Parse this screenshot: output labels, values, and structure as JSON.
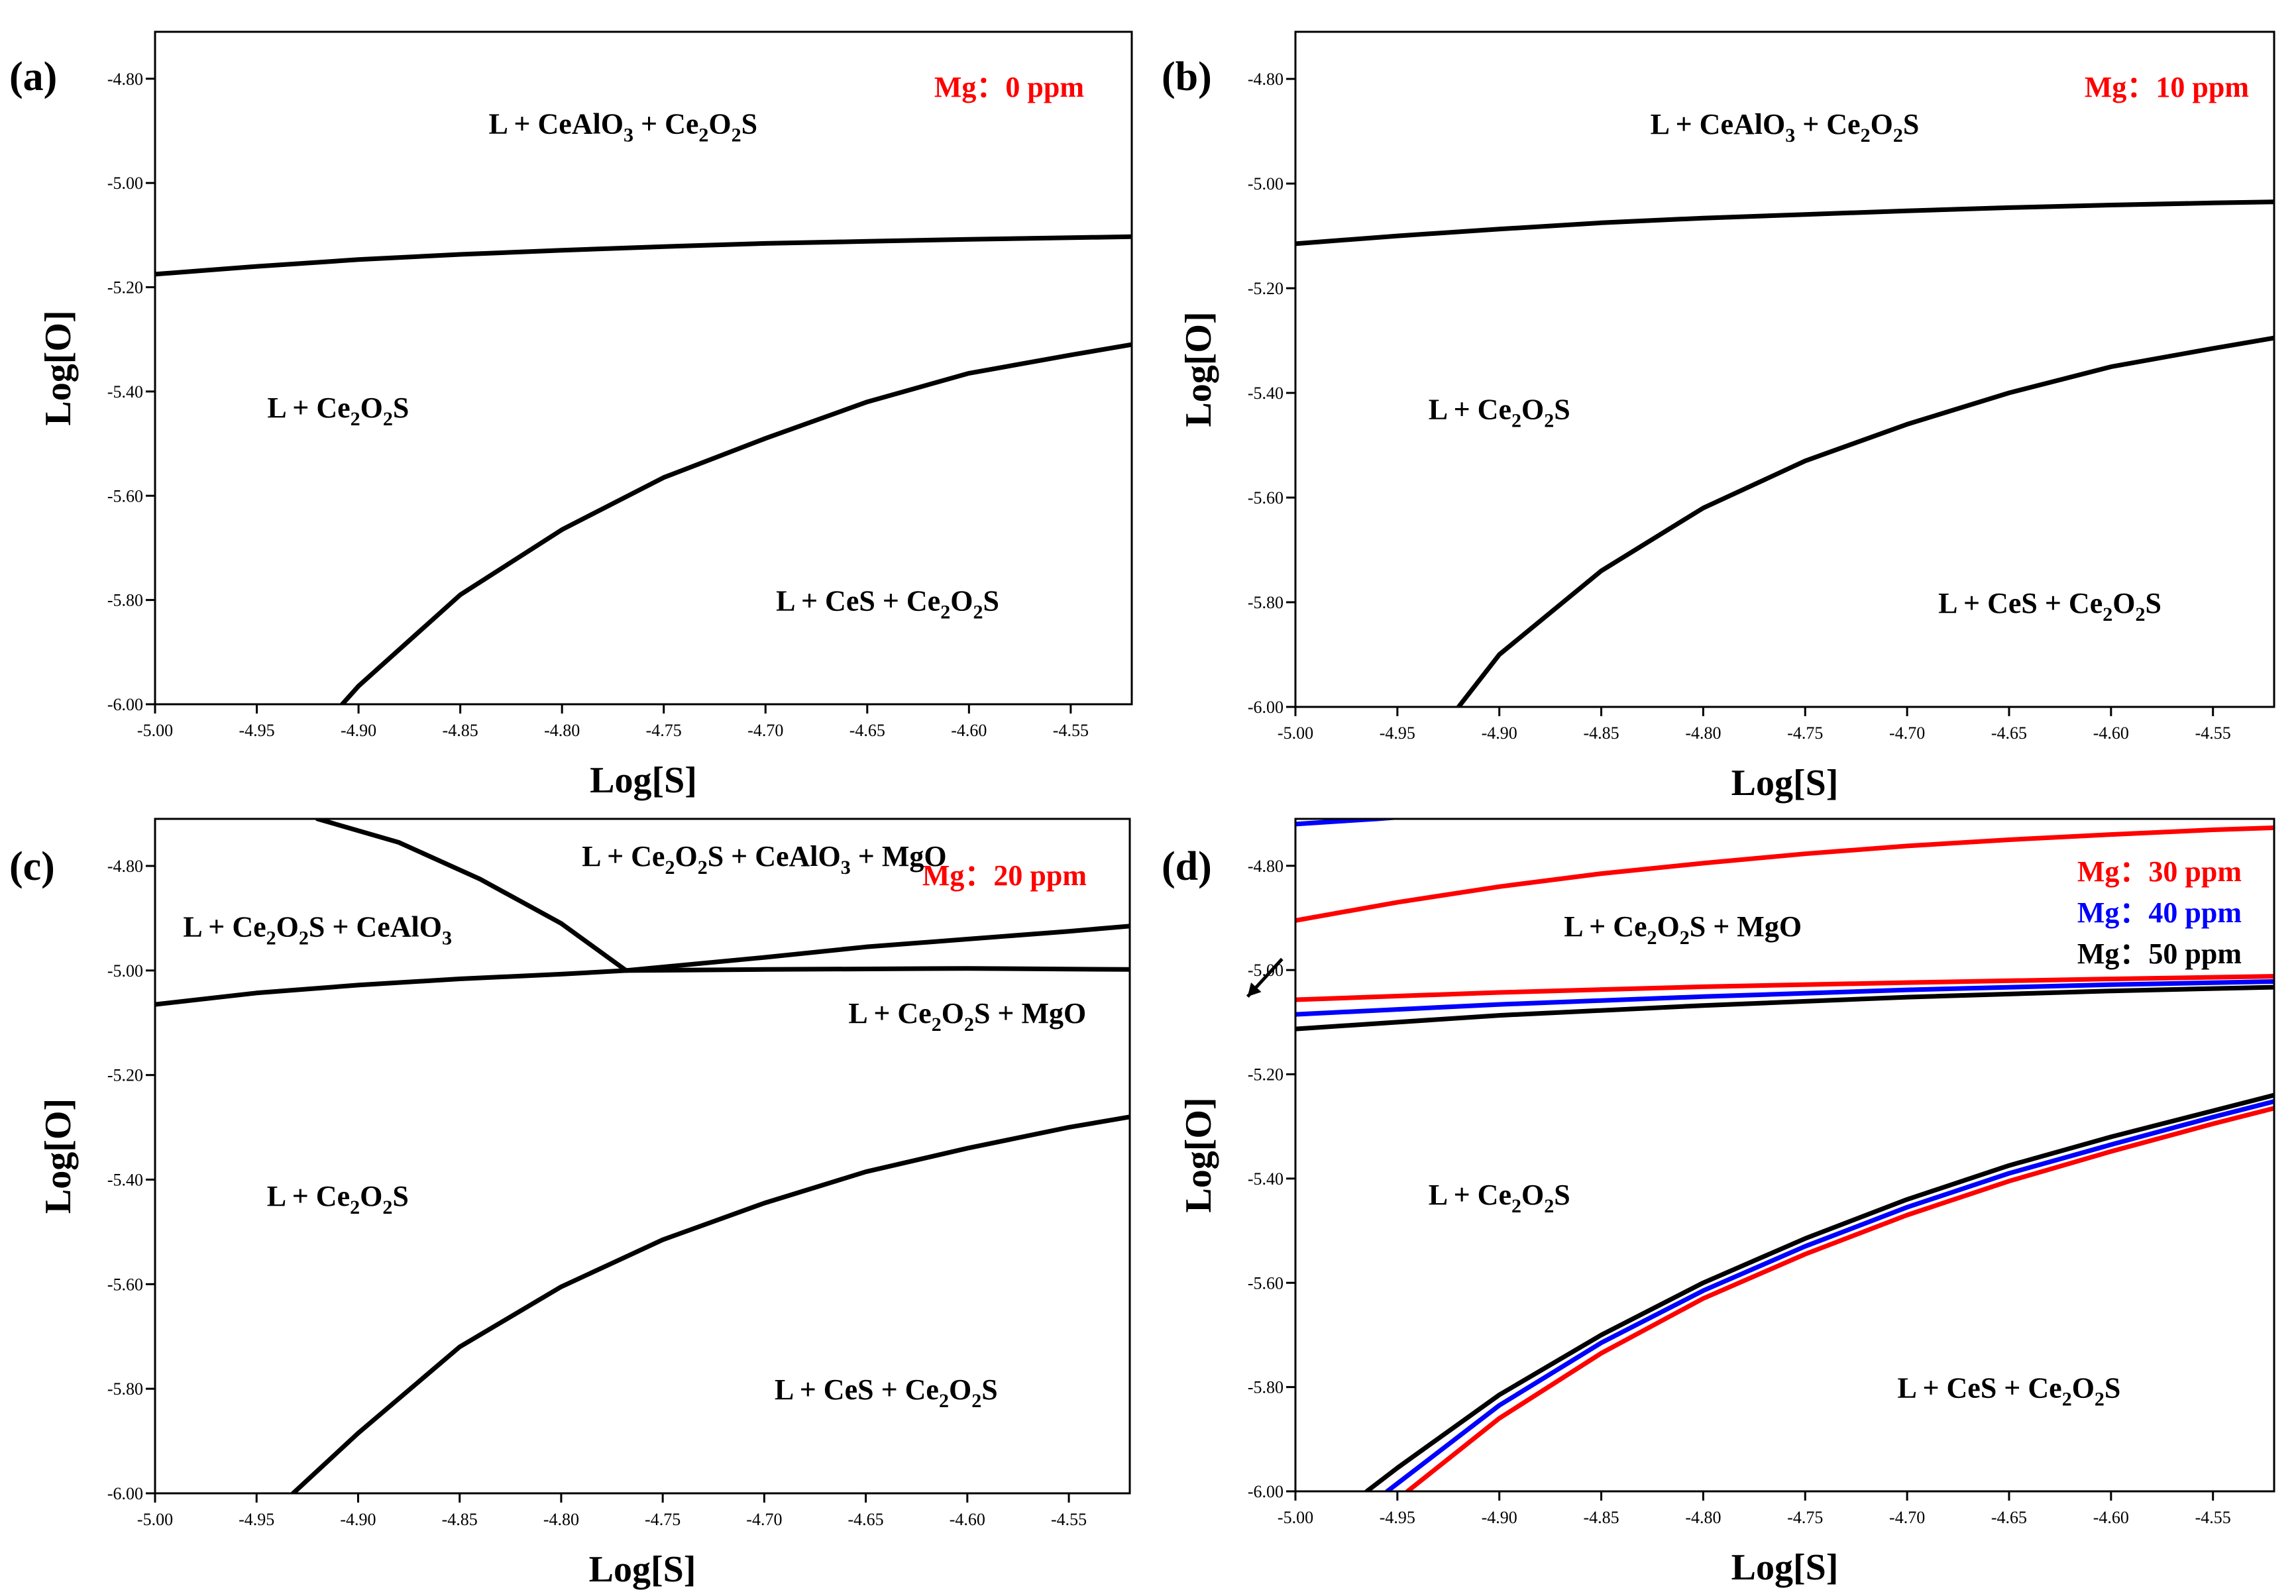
{
  "chart_data": [
    {
      "panel_label": "(a)",
      "type": "line",
      "xlabel": "Log[S]",
      "ylabel": "Log[O]",
      "xlim": [
        -5.0,
        -4.52
      ],
      "ylim": [
        -6.0,
        -4.71
      ],
      "xticks": [
        "-5.00",
        "-4.95",
        "-4.90",
        "-4.85",
        "-4.80",
        "-4.75",
        "-4.70",
        "-4.65",
        "-4.60",
        "-4.55"
      ],
      "yticks": [
        "-4.80",
        "-5.00",
        "-5.20",
        "-5.40",
        "-5.60",
        "-5.80",
        "-6.00"
      ],
      "mg_labels": [
        {
          "text": "Mg：0 ppm",
          "color": "#ff0000"
        }
      ],
      "regions": [
        {
          "parts": [
            [
              "L + CeAlO",
              ""
            ],
            [
              "3",
              "sub"
            ],
            [
              " + Ce",
              ""
            ],
            [
              "2",
              "sub"
            ],
            [
              "O",
              ""
            ],
            [
              "2",
              "sub"
            ],
            [
              "S",
              ""
            ]
          ],
          "at": [
            -4.77,
            -4.905
          ]
        },
        {
          "parts": [
            [
              "L + Ce",
              ""
            ],
            [
              "2",
              "sub"
            ],
            [
              "O",
              ""
            ],
            [
              "2",
              "sub"
            ],
            [
              "S",
              ""
            ]
          ],
          "at": [
            -4.91,
            -5.45
          ]
        },
        {
          "parts": [
            [
              "L + CeS + Ce",
              ""
            ],
            [
              "2",
              "sub"
            ],
            [
              "O",
              ""
            ],
            [
              "2",
              "sub"
            ],
            [
              "S",
              ""
            ]
          ],
          "at": [
            -4.64,
            -5.82
          ]
        }
      ],
      "series": [
        {
          "name": "upper boundary",
          "color": "#000000",
          "x": [
            -5.0,
            -4.95,
            -4.9,
            -4.85,
            -4.8,
            -4.75,
            -4.7,
            -4.65,
            -4.6,
            -4.55,
            -4.52
          ],
          "y": [
            -5.175,
            -5.16,
            -5.147,
            -5.137,
            -5.129,
            -5.122,
            -5.116,
            -5.112,
            -5.108,
            -5.105,
            -5.103
          ]
        },
        {
          "name": "lower boundary",
          "color": "#000000",
          "x": [
            -4.908,
            -4.9,
            -4.85,
            -4.8,
            -4.75,
            -4.7,
            -4.65,
            -4.6,
            -4.55,
            -4.52
          ],
          "y": [
            -6.0,
            -5.965,
            -5.79,
            -5.665,
            -5.565,
            -5.49,
            -5.42,
            -5.365,
            -5.33,
            -5.31
          ]
        }
      ]
    },
    {
      "panel_label": "(b)",
      "type": "line",
      "xlabel": "Log[S]",
      "ylabel": "Log[O]",
      "xlim": [
        -5.0,
        -4.52
      ],
      "ylim": [
        -6.0,
        -4.71
      ],
      "xticks": [
        "-5.00",
        "-4.95",
        "-4.90",
        "-4.85",
        "-4.80",
        "-4.75",
        "-4.70",
        "-4.65",
        "-4.60",
        "-4.55"
      ],
      "yticks": [
        "-4.80",
        "-5.00",
        "-5.20",
        "-5.40",
        "-5.60",
        "-5.80",
        "-6.00"
      ],
      "mg_labels": [
        {
          "text": "Mg：10 ppm",
          "color": "#ff0000"
        }
      ],
      "regions": [
        {
          "parts": [
            [
              "L + CeAlO",
              ""
            ],
            [
              "3",
              "sub"
            ],
            [
              " + Ce",
              ""
            ],
            [
              "2",
              "sub"
            ],
            [
              "O",
              ""
            ],
            [
              "2",
              "sub"
            ],
            [
              "S",
              ""
            ]
          ],
          "at": [
            -4.76,
            -4.905
          ]
        },
        {
          "parts": [
            [
              "L + Ce",
              ""
            ],
            [
              "2",
              "sub"
            ],
            [
              "O",
              ""
            ],
            [
              "2",
              "sub"
            ],
            [
              "S",
              ""
            ]
          ],
          "at": [
            -4.9,
            -5.45
          ]
        },
        {
          "parts": [
            [
              "L + CeS + Ce",
              ""
            ],
            [
              "2",
              "sub"
            ],
            [
              "O",
              ""
            ],
            [
              "2",
              "sub"
            ],
            [
              "S",
              ""
            ]
          ],
          "at": [
            -4.63,
            -5.82
          ]
        }
      ],
      "series": [
        {
          "name": "upper boundary",
          "color": "#000000",
          "x": [
            -5.0,
            -4.95,
            -4.9,
            -4.85,
            -4.8,
            -4.75,
            -4.7,
            -4.65,
            -4.6,
            -4.55,
            -4.52
          ],
          "y": [
            -5.115,
            -5.1,
            -5.087,
            -5.075,
            -5.066,
            -5.059,
            -5.052,
            -5.046,
            -5.041,
            -5.037,
            -5.035
          ]
        },
        {
          "name": "lower boundary",
          "color": "#000000",
          "x": [
            -4.92,
            -4.9,
            -4.85,
            -4.8,
            -4.75,
            -4.7,
            -4.65,
            -4.6,
            -4.55,
            -4.52
          ],
          "y": [
            -6.0,
            -5.9,
            -5.74,
            -5.62,
            -5.53,
            -5.46,
            -5.4,
            -5.35,
            -5.315,
            -5.295
          ]
        }
      ]
    },
    {
      "panel_label": "(c)",
      "type": "line",
      "xlabel": "Log[S]",
      "ylabel": "Log[O]",
      "xlim": [
        -5.0,
        -4.52
      ],
      "ylim": [
        -6.0,
        -4.71
      ],
      "xticks": [
        "-5.00",
        "-4.95",
        "-4.90",
        "-4.85",
        "-4.80",
        "-4.75",
        "-4.70",
        "-4.65",
        "-4.60",
        "-4.55"
      ],
      "yticks": [
        "-4.80",
        "-5.00",
        "-5.20",
        "-5.40",
        "-5.60",
        "-5.80",
        "-6.00"
      ],
      "mg_labels": [
        {
          "text": "Mg：20 ppm",
          "color": "#ff0000"
        }
      ],
      "regions": [
        {
          "parts": [
            [
              "L + Ce",
              ""
            ],
            [
              "2",
              "sub"
            ],
            [
              "O",
              ""
            ],
            [
              "2",
              "sub"
            ],
            [
              "S + CeAlO",
              ""
            ],
            [
              "3",
              "sub"
            ],
            [
              " + MgO",
              ""
            ]
          ],
          "at": [
            -4.7,
            -4.8
          ]
        },
        {
          "parts": [
            [
              "L + Ce",
              ""
            ],
            [
              "2",
              "sub"
            ],
            [
              "O",
              ""
            ],
            [
              "2",
              "sub"
            ],
            [
              "S + CeAlO",
              ""
            ],
            [
              "3",
              "sub"
            ]
          ],
          "at": [
            -4.92,
            -4.935
          ]
        },
        {
          "parts": [
            [
              "L + Ce",
              ""
            ],
            [
              "2",
              "sub"
            ],
            [
              "O",
              ""
            ],
            [
              "2",
              "sub"
            ],
            [
              "S + MgO",
              ""
            ]
          ],
          "at": [
            -4.6,
            -5.1
          ]
        },
        {
          "parts": [
            [
              "L + Ce",
              ""
            ],
            [
              "2",
              "sub"
            ],
            [
              "O",
              ""
            ],
            [
              "2",
              "sub"
            ],
            [
              "S",
              ""
            ]
          ],
          "at": [
            -4.91,
            -5.45
          ]
        },
        {
          "parts": [
            [
              "L + CeS + Ce",
              ""
            ],
            [
              "2",
              "sub"
            ],
            [
              "O",
              ""
            ],
            [
              "2",
              "sub"
            ],
            [
              "S",
              ""
            ]
          ],
          "at": [
            -4.64,
            -5.82
          ]
        }
      ],
      "series": [
        {
          "name": "Ce2O2S/CeAlO3 boundary",
          "color": "#000000",
          "x": [
            -5.0,
            -4.95,
            -4.9,
            -4.85,
            -4.8,
            -4.768
          ],
          "y": [
            -5.065,
            -5.043,
            -5.028,
            -5.016,
            -5.007,
            -5.0
          ]
        },
        {
          "name": "CeAlO3/MgO boundary",
          "color": "#000000",
          "x": [
            -4.92,
            -4.88,
            -4.84,
            -4.8,
            -4.768
          ],
          "y": [
            -4.71,
            -4.755,
            -4.825,
            -4.91,
            -5.0
          ]
        },
        {
          "name": "upper MgO boundary",
          "color": "#000000",
          "x": [
            -4.768,
            -4.7,
            -4.65,
            -4.6,
            -4.55,
            -4.52
          ],
          "y": [
            -5.0,
            -4.975,
            -4.955,
            -4.94,
            -4.925,
            -4.915
          ]
        },
        {
          "name": "lower MgO boundary",
          "color": "#000000",
          "x": [
            -4.768,
            -4.7,
            -4.6,
            -4.52
          ],
          "y": [
            -5.0,
            -4.998,
            -4.996,
            -4.998
          ]
        },
        {
          "name": "lower boundary",
          "color": "#000000",
          "x": [
            -4.932,
            -4.9,
            -4.85,
            -4.8,
            -4.75,
            -4.7,
            -4.65,
            -4.6,
            -4.55,
            -4.52
          ],
          "y": [
            -6.0,
            -5.885,
            -5.72,
            -5.605,
            -5.515,
            -5.445,
            -5.385,
            -5.34,
            -5.3,
            -5.28
          ]
        }
      ]
    },
    {
      "panel_label": "(d)",
      "type": "line",
      "xlabel": "Log[S]",
      "ylabel": "Log[O]",
      "xlim": [
        -5.0,
        -4.52
      ],
      "ylim": [
        -6.0,
        -4.71
      ],
      "xticks": [
        "-5.00",
        "-4.95",
        "-4.90",
        "-4.85",
        "-4.80",
        "-4.75",
        "-4.70",
        "-4.65",
        "-4.60",
        "-4.55"
      ],
      "yticks": [
        "-4.80",
        "-5.00",
        "-5.20",
        "-5.40",
        "-5.60",
        "-5.80",
        "-6.00"
      ],
      "mg_labels": [
        {
          "text": "Mg：30 ppm",
          "color": "#ff0000"
        },
        {
          "text": "Mg：40 ppm",
          "color": "#0000ff"
        },
        {
          "text": "Mg：50 ppm",
          "color": "#000000"
        }
      ],
      "regions": [
        {
          "parts": [
            [
              "L + Ce",
              ""
            ],
            [
              "2",
              "sub"
            ],
            [
              "O",
              ""
            ],
            [
              "2",
              "sub"
            ],
            [
              "S + MgO",
              ""
            ]
          ],
          "at": [
            -4.81,
            -4.935
          ]
        },
        {
          "parts": [
            [
              "L + Ce",
              ""
            ],
            [
              "2",
              "sub"
            ],
            [
              "O",
              ""
            ],
            [
              "2",
              "sub"
            ],
            [
              "S",
              ""
            ]
          ],
          "at": [
            -4.9,
            -5.45
          ]
        },
        {
          "parts": [
            [
              "L + CeS + Ce",
              ""
            ],
            [
              "2",
              "sub"
            ],
            [
              "O",
              ""
            ],
            [
              "2",
              "sub"
            ],
            [
              "S",
              ""
            ]
          ],
          "at": [
            -4.65,
            -5.82
          ]
        }
      ],
      "series": [
        {
          "name": "Mg 30 ppm MgO upper",
          "color": "#ff0000",
          "x": [
            -5.0,
            -4.95,
            -4.9,
            -4.85,
            -4.8,
            -4.75,
            -4.7,
            -4.65,
            -4.6,
            -4.55,
            -4.52
          ],
          "y": [
            -4.905,
            -4.87,
            -4.84,
            -4.815,
            -4.795,
            -4.777,
            -4.762,
            -4.75,
            -4.74,
            -4.731,
            -4.727
          ]
        },
        {
          "name": "Mg 40 ppm MgO upper",
          "color": "#0000ff",
          "x": [
            -5.0,
            -4.98,
            -4.96,
            -4.95
          ],
          "y": [
            -4.72,
            -4.715,
            -4.71,
            -4.707
          ]
        },
        {
          "name": "Mg 30 ppm MgO lower",
          "color": "#ff0000",
          "x": [
            -5.0,
            -4.9,
            -4.8,
            -4.7,
            -4.6,
            -4.52
          ],
          "y": [
            -5.057,
            -5.043,
            -5.032,
            -5.024,
            -5.017,
            -5.012
          ]
        },
        {
          "name": "Mg 40 ppm MgO lower",
          "color": "#0000ff",
          "x": [
            -5.0,
            -4.9,
            -4.8,
            -4.7,
            -4.6,
            -4.52
          ],
          "y": [
            -5.085,
            -5.066,
            -5.051,
            -5.038,
            -5.028,
            -5.022
          ]
        },
        {
          "name": "Mg 50 ppm MgO lower",
          "color": "#000000",
          "x": [
            -5.0,
            -4.9,
            -4.8,
            -4.7,
            -4.6,
            -4.52
          ],
          "y": [
            -5.113,
            -5.087,
            -5.068,
            -5.052,
            -5.04,
            -5.033
          ]
        },
        {
          "name": "Mg 50 ppm CeS boundary",
          "color": "#000000",
          "x": [
            -4.965,
            -4.95,
            -4.9,
            -4.85,
            -4.8,
            -4.75,
            -4.7,
            -4.65,
            -4.6,
            -4.55,
            -4.52
          ],
          "y": [
            -6.0,
            -5.955,
            -5.815,
            -5.7,
            -5.6,
            -5.515,
            -5.44,
            -5.375,
            -5.32,
            -5.27,
            -5.24
          ]
        },
        {
          "name": "Mg 40 ppm CeS boundary",
          "color": "#0000ff",
          "x": [
            -4.955,
            -4.95,
            -4.9,
            -4.85,
            -4.8,
            -4.75,
            -4.7,
            -4.65,
            -4.6,
            -4.55,
            -4.52
          ],
          "y": [
            -6.0,
            -5.985,
            -5.835,
            -5.715,
            -5.615,
            -5.53,
            -5.455,
            -5.39,
            -5.335,
            -5.282,
            -5.252
          ]
        },
        {
          "name": "Mg 30 ppm CeS boundary",
          "color": "#ff0000",
          "x": [
            -4.945,
            -4.9,
            -4.85,
            -4.8,
            -4.75,
            -4.7,
            -4.65,
            -4.6,
            -4.55,
            -4.52
          ],
          "y": [
            -6.0,
            -5.86,
            -5.735,
            -5.63,
            -5.545,
            -5.47,
            -5.405,
            -5.348,
            -5.295,
            -5.265
          ]
        }
      ]
    }
  ]
}
